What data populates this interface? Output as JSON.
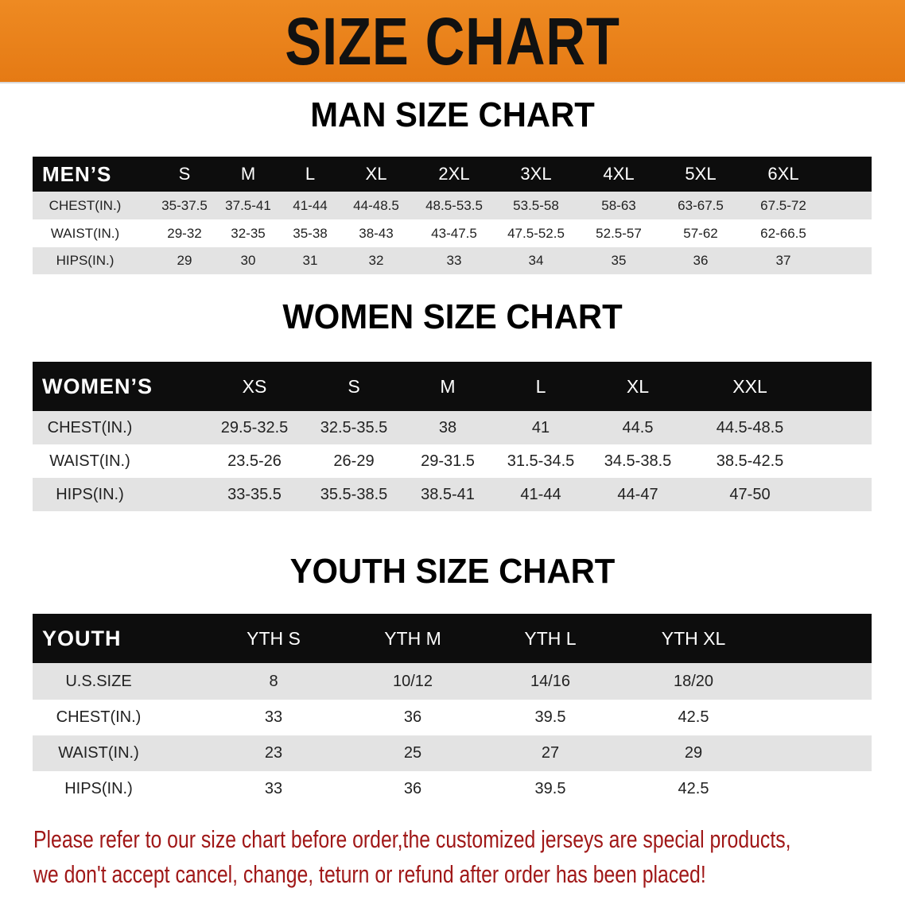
{
  "banner": {
    "title": "SIZE CHART",
    "color": "#ea8019"
  },
  "men": {
    "title": "MAN SIZE CHART",
    "header": [
      "MEN’S",
      "S",
      "M",
      "L",
      "XL",
      "2XL",
      "3XL",
      "4XL",
      "5XL",
      "6XL"
    ],
    "rows": [
      [
        "CHEST(IN.)",
        "35-37.5",
        "37.5-41",
        "41-44",
        "44-48.5",
        "48.5-53.5",
        "53.5-58",
        "58-63",
        "63-67.5",
        "67.5-72"
      ],
      [
        "WAIST(IN.)",
        "29-32",
        "32-35",
        "35-38",
        "38-43",
        "43-47.5",
        "47.5-52.5",
        "52.5-57",
        "57-62",
        "62-66.5"
      ],
      [
        "HIPS(IN.)",
        "29",
        "30",
        "31",
        "32",
        "33",
        "34",
        "35",
        "36",
        "37"
      ]
    ]
  },
  "women": {
    "title": "WOMEN SIZE CHART",
    "header": [
      "WOMEN’S",
      "XS",
      "S",
      "M",
      "L",
      "XL",
      "XXL"
    ],
    "rows": [
      [
        "CHEST(IN.)",
        "29.5-32.5",
        "32.5-35.5",
        "38",
        "41",
        "44.5",
        "44.5-48.5"
      ],
      [
        "WAIST(IN.)",
        "23.5-26",
        "26-29",
        "29-31.5",
        "31.5-34.5",
        "34.5-38.5",
        "38.5-42.5"
      ],
      [
        "HIPS(IN.)",
        "33-35.5",
        "35.5-38.5",
        "38.5-41",
        "41-44",
        "44-47",
        "47-50"
      ]
    ]
  },
  "youth": {
    "title": "YOUTH SIZE CHART",
    "header": [
      "YOUTH",
      "YTH S",
      "YTH M",
      "YTH L",
      "YTH XL"
    ],
    "rows": [
      [
        "U.S.SIZE",
        "8",
        "10/12",
        "14/16",
        "18/20"
      ],
      [
        "CHEST(IN.)",
        "33",
        "36",
        "39.5",
        "42.5"
      ],
      [
        "WAIST(IN.)",
        "23",
        "25",
        "27",
        "29"
      ],
      [
        "HIPS(IN.)",
        "33",
        "36",
        "39.5",
        "42.5"
      ]
    ]
  },
  "notice": {
    "line1": "Please refer to our size chart before order,the customized jerseys are special products,",
    "line2": "we don't accept cancel, change, teturn or refund after order has been placed!",
    "color": "#a01818"
  }
}
